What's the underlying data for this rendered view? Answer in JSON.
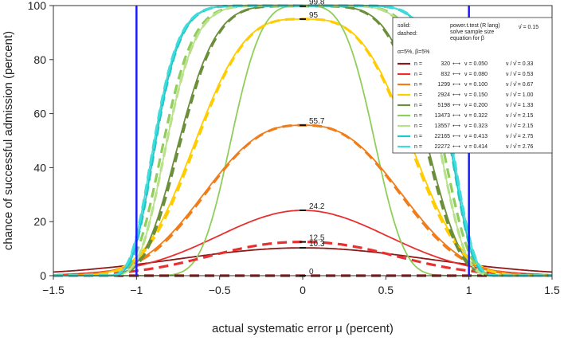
{
  "chart_data": {
    "type": "line",
    "xlabel": "actual systematic error μ (percent)",
    "ylabel": "chance of successful admission (percent)",
    "xlim": [
      -1.5,
      1.5
    ],
    "ylim": [
      0,
      100
    ],
    "x_ticks": [
      "−1.5",
      "−1",
      "−0.5",
      "0",
      "0.5",
      "1",
      "1.5"
    ],
    "y_ticks": [
      "0",
      "20",
      "40",
      "60",
      "80",
      "100"
    ],
    "grid": false,
    "vertical_lines": [
      -1,
      1
    ],
    "vertical_line_color": "#1a1aff",
    "peak_annotations": [
      {
        "text": "99.8",
        "x": 0,
        "y": 99.8
      },
      {
        "text": "95",
        "x": 0,
        "y": 95
      },
      {
        "text": "55.7",
        "x": 0,
        "y": 55.7
      },
      {
        "text": "24.2",
        "x": 0,
        "y": 24.2
      },
      {
        "text": "12.5",
        "x": 0,
        "y": 12.5
      },
      {
        "text": "10.3",
        "x": 0,
        "y": 10.3
      },
      {
        "text": "0",
        "x": 0,
        "y": 0
      }
    ],
    "series": [
      {
        "n": "320",
        "nu": "0.050",
        "ratio": "0.33",
        "color": "#8b1a1a",
        "solid_peak": 10.3,
        "solid_halfwidth": 1.05,
        "solid_exp": 2,
        "dashed_peak": 0,
        "dashed_halfwidth": 1.0,
        "dashed_exp": 6
      },
      {
        "n": "832",
        "nu": "0.080",
        "ratio": "0.53",
        "color": "#e83030",
        "solid_peak": 24.2,
        "solid_halfwidth": 0.72,
        "solid_exp": 2,
        "dashed_peak": 12.5,
        "dashed_halfwidth": 0.74,
        "dashed_exp": 2.2
      },
      {
        "n": "1299",
        "nu": "0.100",
        "ratio": "0.67",
        "color": "#f07d1a",
        "solid_peak": 55.7,
        "solid_halfwidth": 0.72,
        "solid_exp": 2.6,
        "dashed_peak": 55.7,
        "dashed_halfwidth": 0.71,
        "dashed_exp": 2.6
      },
      {
        "n": "2924",
        "nu": "0.150",
        "ratio": "1.00",
        "color": "#ffcc00",
        "solid_peak": 95,
        "solid_halfwidth": 0.74,
        "solid_exp": 3.2,
        "dashed_peak": 95,
        "dashed_halfwidth": 0.73,
        "dashed_exp": 3.2
      },
      {
        "n": "5198",
        "nu": "0.200",
        "ratio": "1.33",
        "color": "#6b8e3a",
        "solid_peak": 99.8,
        "solid_halfwidth": 0.8,
        "solid_exp": 5,
        "dashed_peak": 99.8,
        "dashed_halfwidth": 0.79,
        "dashed_exp": 5
      },
      {
        "n": "13473",
        "nu": "0.322",
        "ratio": "2.15",
        "color": "#8fce5a",
        "solid_peak": 100,
        "solid_halfwidth": 0.48,
        "solid_exp": 3.5,
        "dashed_peak": 100,
        "dashed_halfwidth": 0.88,
        "dashed_exp": 7
      },
      {
        "n": "13557",
        "nu": "0.323",
        "ratio": "2.15",
        "color": "#b9e08a",
        "solid_peak": 100,
        "solid_halfwidth": 0.86,
        "solid_exp": 7,
        "dashed_peak": 100,
        "dashed_halfwidth": 0.86,
        "dashed_exp": 7
      },
      {
        "n": "22165",
        "nu": "0.413",
        "ratio": "2.75",
        "color": "#21c6c6",
        "solid_peak": 100,
        "solid_halfwidth": 0.92,
        "solid_exp": 9,
        "dashed_peak": 100,
        "dashed_halfwidth": 0.92,
        "dashed_exp": 9
      },
      {
        "n": "22272",
        "nu": "0.414",
        "ratio": "2.76",
        "color": "#40dcdc",
        "solid_peak": 100,
        "solid_halfwidth": 0.93,
        "solid_exp": 9,
        "dashed_peak": 100,
        "dashed_halfwidth": 0.93,
        "dashed_exp": 9
      }
    ],
    "legend": {
      "placement": "top-right",
      "solid_label": "solid:",
      "dashed_label": "dashed:",
      "method_line1": "power.t.test (R lang)",
      "method_line2": "solve sample size",
      "method_line3": "equation for β",
      "nu_hat": "ν̂ = 0.15",
      "alpha_beta": "α=5%, β=5%",
      "n_prefix": "n =",
      "arrow": "⟷",
      "nu_prefix": "ν = ",
      "ratio_prefix": "ν / ν̂ = "
    }
  }
}
